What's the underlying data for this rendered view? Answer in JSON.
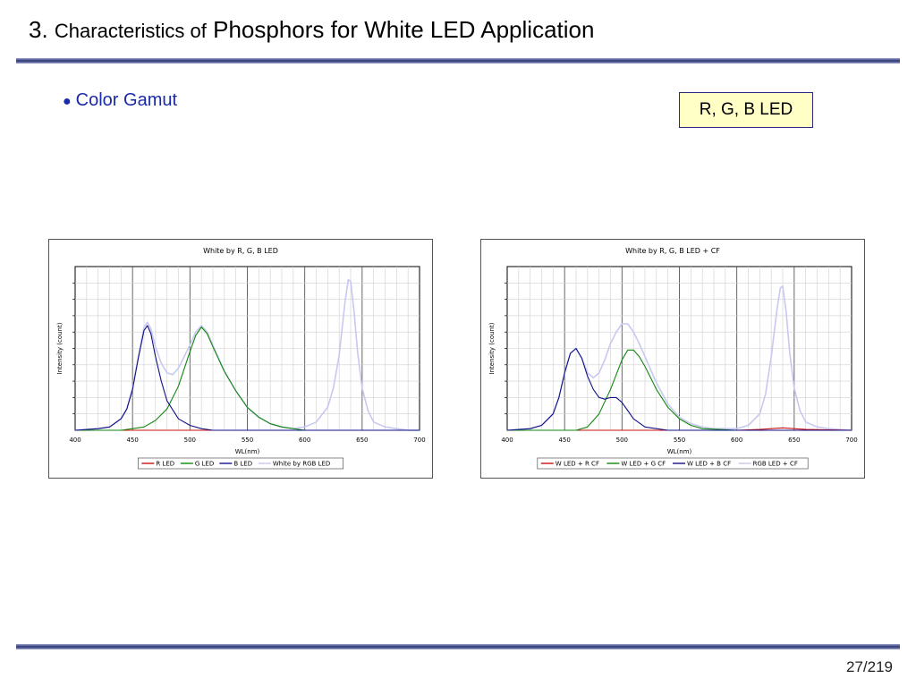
{
  "slide": {
    "title_num": "3.",
    "title_text_small": "Characteristics of",
    "title_text_large": "Phosphors for White LED Application",
    "bullet": "Color Gamut",
    "tag": "R, G, B LED",
    "page": "27/219"
  },
  "colors": {
    "red": "#cc1111",
    "green": "#118811",
    "blue": "#111188",
    "white": "#c8c8f0",
    "rule": "#2a3576"
  },
  "chart_data": [
    {
      "type": "line",
      "title": "White by R, G, B LED",
      "xlabel": "WL(nm)",
      "ylabel": "Intensity (count)",
      "xlim": [
        400,
        700
      ],
      "xticks": [
        "400",
        "450",
        "500",
        "550",
        "600",
        "650",
        "700"
      ],
      "ylim": [
        0,
        1
      ],
      "grid": true,
      "legend_position": "bottom",
      "series": [
        {
          "name": "R LED",
          "color": "#cc1111",
          "x": [
            400,
            450,
            500,
            550,
            600,
            650,
            700
          ],
          "y": [
            0.0,
            0.0,
            0.0,
            0.0,
            0.0,
            0.0,
            0.0
          ]
        },
        {
          "name": "G LED",
          "color": "#118811",
          "x": [
            400,
            440,
            450,
            460,
            470,
            480,
            490,
            500,
            505,
            510,
            515,
            520,
            530,
            540,
            550,
            560,
            570,
            580,
            600,
            650,
            700
          ],
          "y": [
            0.0,
            0.0,
            0.01,
            0.02,
            0.06,
            0.13,
            0.27,
            0.48,
            0.58,
            0.63,
            0.59,
            0.51,
            0.36,
            0.24,
            0.14,
            0.08,
            0.04,
            0.02,
            0.0,
            0.0,
            0.0
          ]
        },
        {
          "name": "B LED",
          "color": "#111188",
          "x": [
            400,
            420,
            430,
            440,
            445,
            450,
            455,
            460,
            463,
            466,
            470,
            475,
            480,
            490,
            500,
            510,
            520,
            540,
            560,
            700
          ],
          "y": [
            0.0,
            0.01,
            0.02,
            0.07,
            0.13,
            0.25,
            0.44,
            0.61,
            0.64,
            0.59,
            0.45,
            0.3,
            0.18,
            0.07,
            0.03,
            0.01,
            0.0,
            0.0,
            0.0,
            0.0
          ]
        },
        {
          "name": "White by RGB LED",
          "color": "#c8c8f0",
          "x": [
            400,
            420,
            430,
            440,
            445,
            450,
            455,
            460,
            463,
            466,
            470,
            475,
            480,
            485,
            490,
            500,
            505,
            510,
            515,
            520,
            530,
            540,
            550,
            560,
            570,
            580,
            590,
            600,
            610,
            620,
            625,
            630,
            635,
            638,
            640,
            643,
            646,
            650,
            655,
            660,
            670,
            680,
            690,
            700
          ],
          "y": [
            0.0,
            0.01,
            0.02,
            0.07,
            0.13,
            0.26,
            0.45,
            0.63,
            0.66,
            0.62,
            0.51,
            0.41,
            0.35,
            0.34,
            0.38,
            0.52,
            0.6,
            0.64,
            0.6,
            0.52,
            0.36,
            0.24,
            0.14,
            0.08,
            0.04,
            0.02,
            0.01,
            0.02,
            0.05,
            0.14,
            0.26,
            0.46,
            0.78,
            0.92,
            0.91,
            0.72,
            0.48,
            0.26,
            0.12,
            0.05,
            0.02,
            0.01,
            0.0,
            0.0
          ]
        }
      ]
    },
    {
      "type": "line",
      "title": "White by R, G, B LED + CF",
      "xlabel": "WL(nm)",
      "ylabel": "Intensity (count)",
      "xlim": [
        400,
        700
      ],
      "xticks": [
        "400",
        "450",
        "500",
        "550",
        "600",
        "650",
        "700"
      ],
      "ylim": [
        0,
        1
      ],
      "grid": true,
      "legend_position": "bottom",
      "series": [
        {
          "name": "W LED + R CF",
          "color": "#cc1111",
          "x": [
            400,
            450,
            500,
            550,
            600,
            620,
            630,
            640,
            650,
            660,
            700
          ],
          "y": [
            0.0,
            0.0,
            0.0,
            0.0,
            0.0,
            0.005,
            0.01,
            0.015,
            0.01,
            0.005,
            0.0
          ]
        },
        {
          "name": "W LED + G CF",
          "color": "#118811",
          "x": [
            400,
            460,
            470,
            480,
            490,
            500,
            505,
            510,
            515,
            520,
            530,
            540,
            550,
            560,
            570,
            600,
            700
          ],
          "y": [
            0.0,
            0.0,
            0.02,
            0.1,
            0.25,
            0.43,
            0.49,
            0.49,
            0.45,
            0.39,
            0.25,
            0.14,
            0.07,
            0.03,
            0.01,
            0.0,
            0.0
          ]
        },
        {
          "name": "W LED + B CF",
          "color": "#111188",
          "x": [
            400,
            420,
            430,
            440,
            445,
            450,
            455,
            460,
            465,
            470,
            475,
            480,
            485,
            490,
            495,
            500,
            505,
            510,
            520,
            530,
            540,
            700
          ],
          "y": [
            0.0,
            0.01,
            0.03,
            0.1,
            0.2,
            0.35,
            0.47,
            0.5,
            0.44,
            0.33,
            0.25,
            0.2,
            0.19,
            0.2,
            0.2,
            0.17,
            0.12,
            0.07,
            0.02,
            0.01,
            0.0,
            0.0
          ]
        },
        {
          "name": "RGB LED + CF",
          "color": "#c8c8f0",
          "x": [
            400,
            420,
            430,
            440,
            445,
            450,
            455,
            460,
            465,
            470,
            475,
            480,
            485,
            490,
            495,
            500,
            505,
            510,
            515,
            520,
            530,
            540,
            550,
            560,
            570,
            580,
            600,
            610,
            620,
            625,
            630,
            635,
            638,
            640,
            643,
            646,
            650,
            655,
            660,
            670,
            680,
            700
          ],
          "y": [
            0.0,
            0.01,
            0.03,
            0.1,
            0.2,
            0.35,
            0.47,
            0.5,
            0.44,
            0.35,
            0.32,
            0.35,
            0.43,
            0.53,
            0.6,
            0.65,
            0.65,
            0.6,
            0.53,
            0.45,
            0.29,
            0.16,
            0.08,
            0.04,
            0.02,
            0.01,
            0.01,
            0.03,
            0.1,
            0.22,
            0.45,
            0.74,
            0.87,
            0.88,
            0.72,
            0.48,
            0.26,
            0.12,
            0.05,
            0.02,
            0.01,
            0.0
          ]
        }
      ]
    }
  ]
}
